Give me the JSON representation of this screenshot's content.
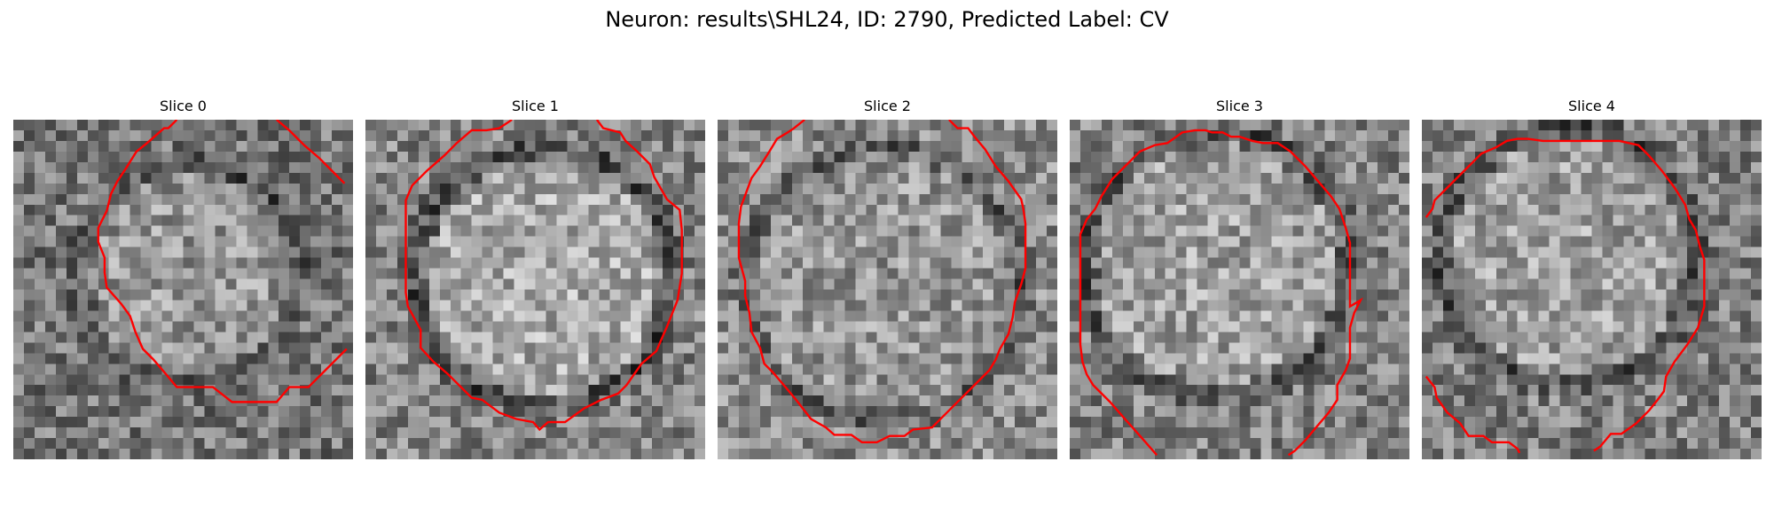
{
  "figure": {
    "title": "Neuron: results\\SHL24, ID: 2790, Predicted Label: CV"
  },
  "panels": [
    {
      "title": "Slice 0"
    },
    {
      "title": "Slice 1"
    },
    {
      "title": "Slice 2"
    },
    {
      "title": "Slice 3"
    },
    {
      "title": "Slice 4"
    }
  ],
  "colors": {
    "contour": "#ff0000",
    "background": "#ffffff"
  }
}
